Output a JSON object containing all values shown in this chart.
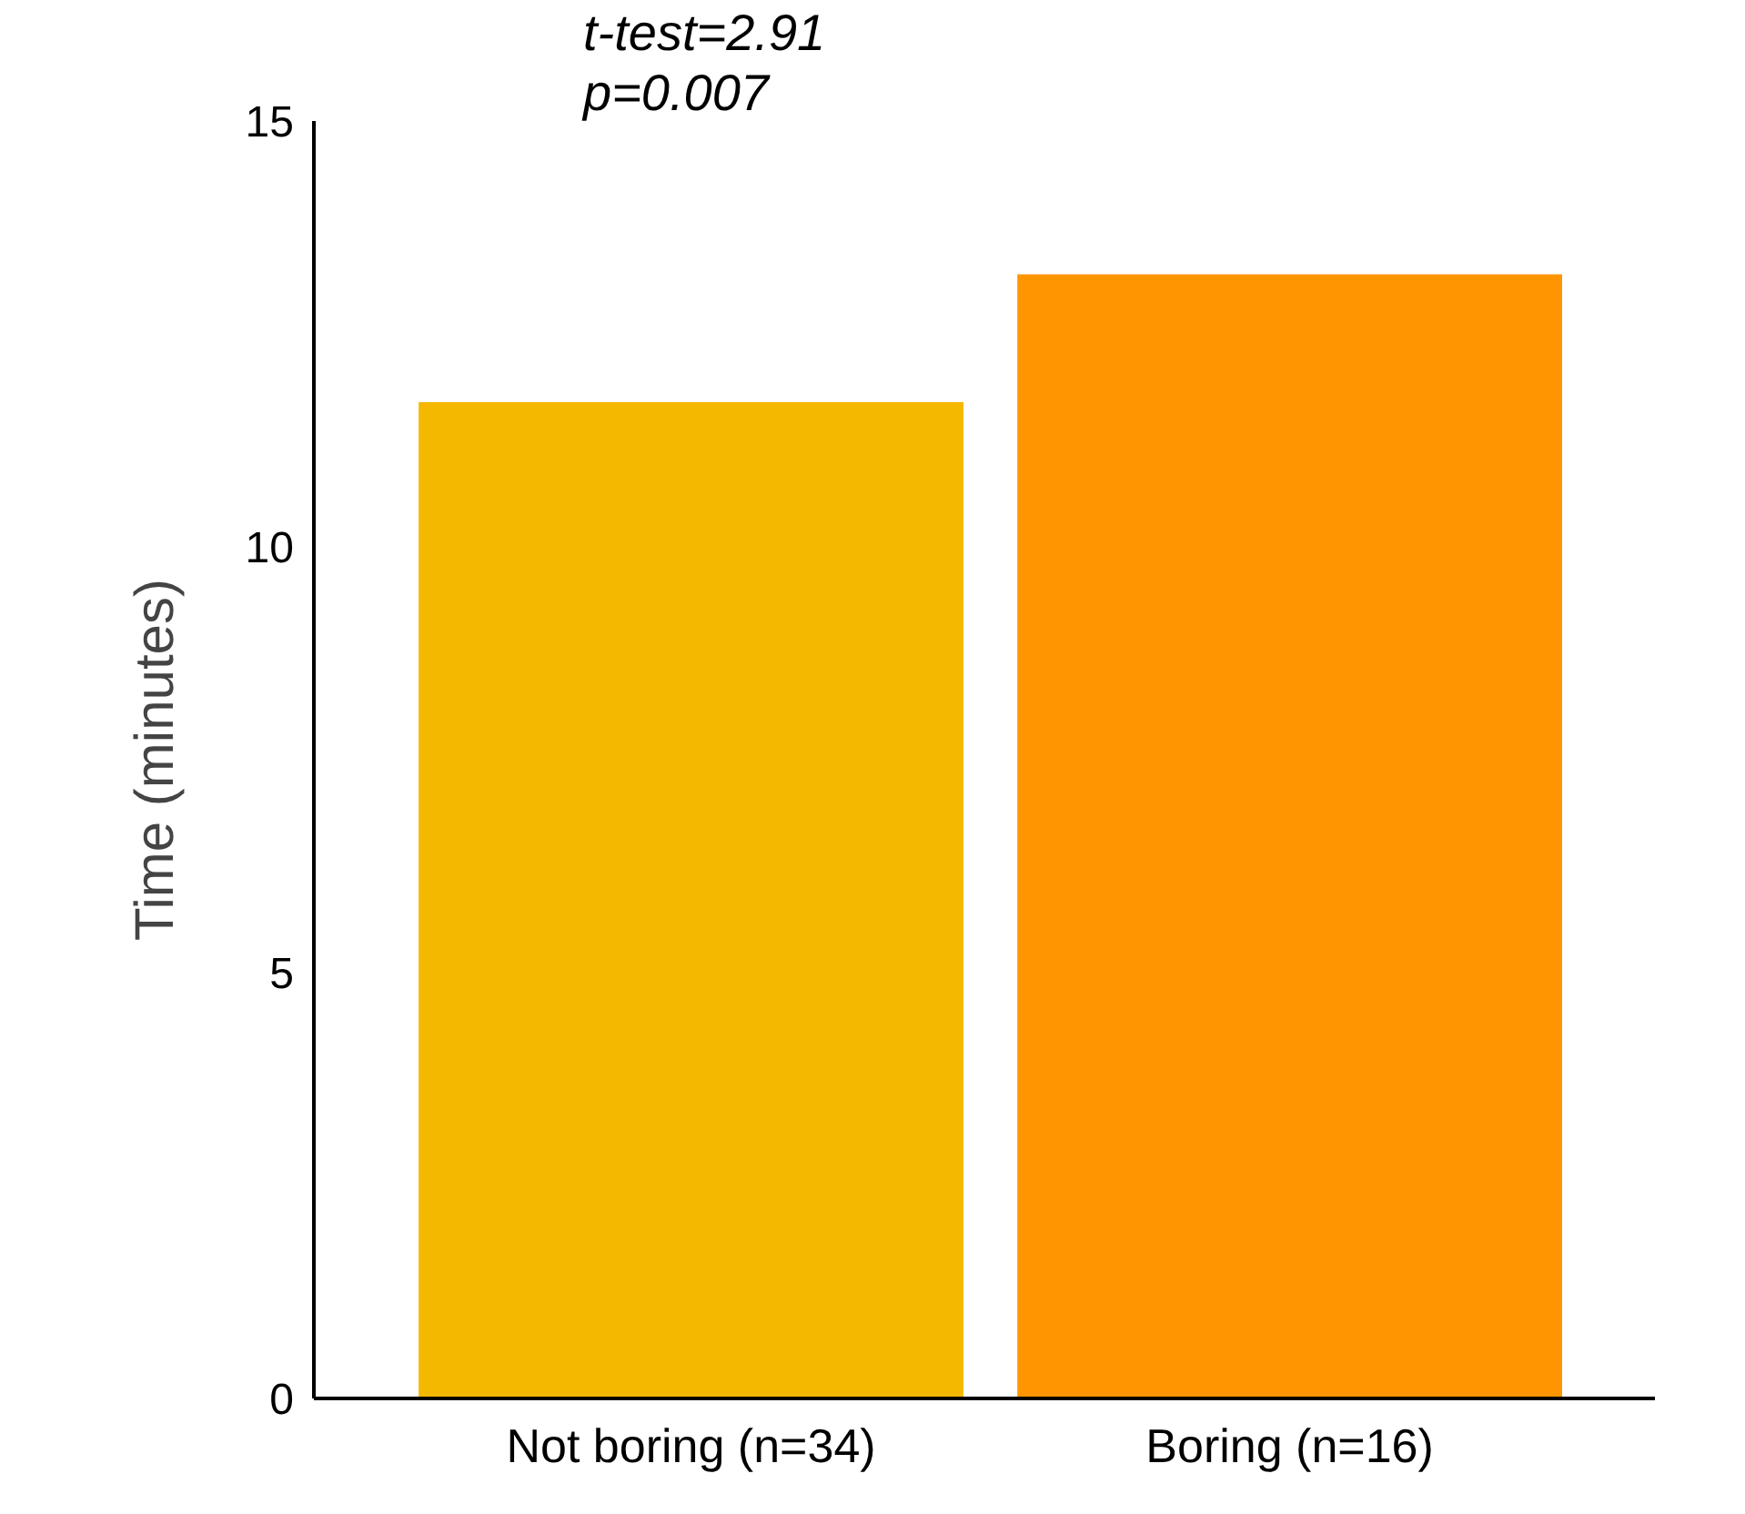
{
  "chart_data": {
    "type": "bar",
    "categories": [
      "Not boring (n=34)",
      "Boring (n=16)"
    ],
    "values": [
      11.7,
      13.2
    ],
    "colors": [
      "#f5b800",
      "#ff9500"
    ],
    "ylabel": "Time (minutes)",
    "ylim": [
      0,
      15
    ],
    "yticks": [
      0,
      5,
      10,
      15
    ],
    "grid": false,
    "annotations": [
      "t-test=2.91",
      "p=0.007"
    ]
  }
}
